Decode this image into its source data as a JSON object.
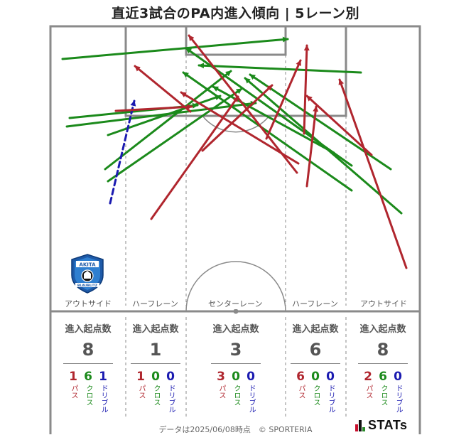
{
  "title": "直近3試合のPA内進入傾向 | 5レーン別",
  "lanes": [
    {
      "label": "アウトサイド",
      "total": "8",
      "pass": "1",
      "cross": "6",
      "dribble": "1"
    },
    {
      "label": "ハーフレーン",
      "total": "1",
      "pass": "1",
      "cross": "0",
      "dribble": "0"
    },
    {
      "label": "センターレーン",
      "total": "3",
      "pass": "3",
      "cross": "0",
      "dribble": "0"
    },
    {
      "label": "ハーフレーン",
      "total": "6",
      "pass": "6",
      "cross": "0",
      "dribble": "0"
    },
    {
      "label": "アウトサイド",
      "total": "8",
      "pass": "2",
      "cross": "6",
      "dribble": "0"
    }
  ],
  "stat_header": "進入起点数",
  "type_labels": {
    "pass": "パス",
    "cross": "クロス",
    "dribble": "ドリブル"
  },
  "colors": {
    "pass": "#b0262e",
    "cross": "#1b8a1b",
    "dribble": "#1a1ab0",
    "pitch_line": "#8a8a8a"
  },
  "club_logo": {
    "top_text": "AKITA",
    "bottom_text": "BLAUBLITZ",
    "icon": "blaublitz-akita-crest"
  },
  "footer": "データは2025/06/08時点　© SPORTERIA",
  "brand": {
    "text": "STATs",
    "icon": "j-stats-logo"
  }
}
